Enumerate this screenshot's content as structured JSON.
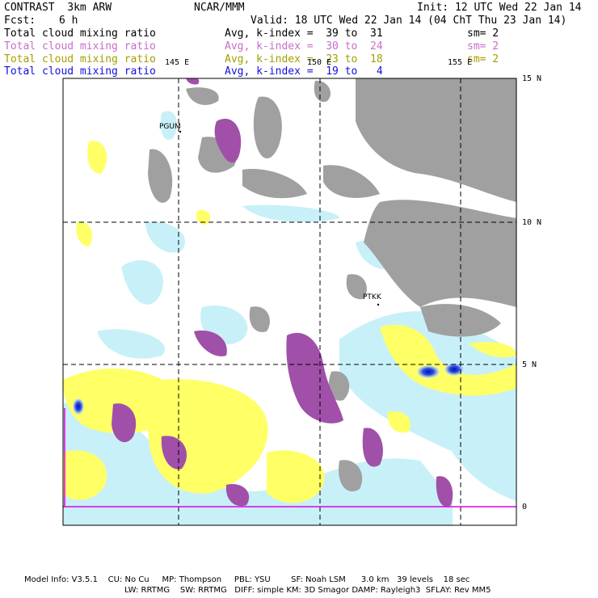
{
  "header": {
    "product": "CONTRAST  3km ARW",
    "center": "NCAR/MMM",
    "init": "Init: 12 UTC Wed 22 Jan 14",
    "fcst_label": "Fcst:",
    "fcst_value": "6 h",
    "valid": "Valid: 18 UTC Wed 22 Jan 14 (04 ChT Thu 23 Jan 14)"
  },
  "legend": [
    {
      "field": "Total cloud mixing ratio",
      "avg": "Avg, k-index =  39 to  31",
      "sm": "sm= 2",
      "color": "#000000"
    },
    {
      "field": "Total cloud mixing ratio",
      "avg": "Avg, k-index =  30 to  24",
      "sm": "sm= 2",
      "color": "#c86ec8"
    },
    {
      "field": "Total cloud mixing ratio",
      "avg": "Avg, k-index =  23 to  18",
      "sm": "sm= 2",
      "color": "#a0a000"
    },
    {
      "field": "Total cloud mixing ratio",
      "avg": "Avg, k-index =  19 to   4",
      "sm": "",
      "color": "#1010e0"
    }
  ],
  "map": {
    "lon_labels": [
      "145 E",
      "150 E",
      "155 E"
    ],
    "lat_labels": [
      "15 N",
      "10 N",
      "5 N",
      "0"
    ],
    "stations": [
      "PGUM",
      "PTKK"
    ],
    "colors": {
      "gray": "#a0a0a0",
      "purple": "#a050a8",
      "yellow": "#ffff66",
      "lightblue": "#c8f0f8",
      "blue": "#1020d0",
      "magenta_line": "#e000e0"
    }
  },
  "footer": {
    "line1": "Model Info: V3.5.1    CU: No Cu     MP: Thompson     PBL: YSU        SF: Noah LSM      3.0 km   39 levels    18 sec",
    "line2": "LW: RRTMG    SW: RRTMG   DIFF: simple KM: 3D Smagor DAMP: Rayleigh3  SFLAY: Rev MM5"
  }
}
